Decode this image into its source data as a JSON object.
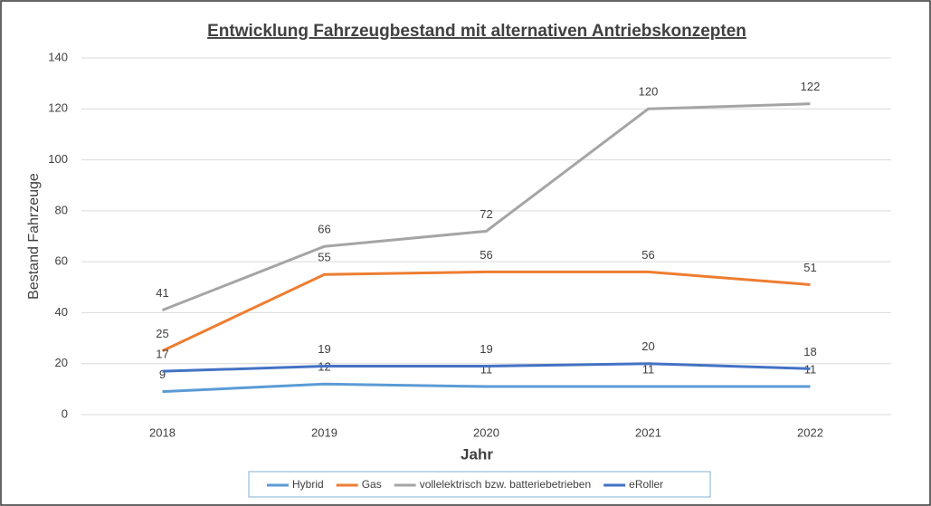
{
  "chart_data": {
    "type": "line",
    "title": "Entwicklung Fahrzeugbestand mit alternativen Antriebskonzepten",
    "x_label": "Jahr",
    "y_label": "Bestand Fahrzeuge",
    "categories": [
      "2018",
      "2019",
      "2020",
      "2021",
      "2022"
    ],
    "series": [
      {
        "name": "Hybrid",
        "color": "#5b9bd5",
        "values": [
          9,
          12,
          11,
          11,
          11
        ]
      },
      {
        "name": "Gas",
        "color": "#ed7d31",
        "values": [
          25,
          55,
          56,
          56,
          51
        ]
      },
      {
        "name": "vollelektrisch bzw. batteriebetrieben",
        "color": "#a5a5a5",
        "values": [
          41,
          66,
          72,
          120,
          122
        ]
      },
      {
        "name": "eRoller",
        "color": "#4472c4",
        "values": [
          17,
          19,
          19,
          20,
          18
        ]
      }
    ],
    "ylim": [
      0,
      140
    ],
    "yticks": [
      0,
      20,
      40,
      60,
      80,
      100,
      120,
      140
    ],
    "grid": true,
    "legend": "bottom"
  }
}
